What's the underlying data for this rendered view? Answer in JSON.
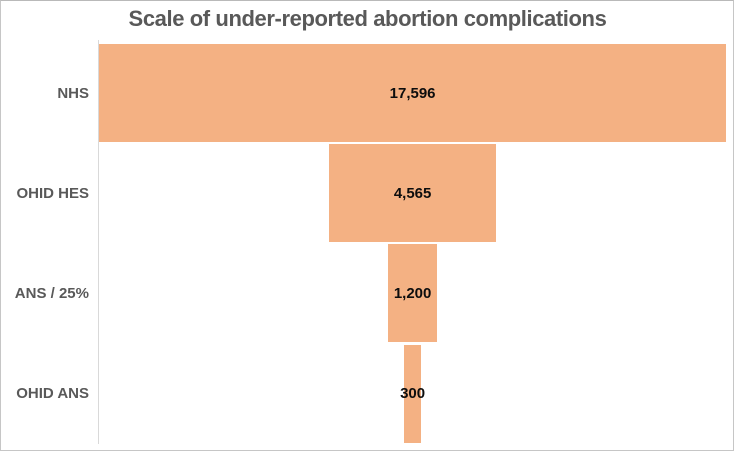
{
  "title": "Scale of under-reported abortion complications",
  "chart_data": {
    "type": "bar",
    "subtype": "centered-funnel",
    "orientation": "horizontal-centered",
    "title": "Scale of under-reported abortion complications",
    "categories": [
      "NHS",
      "OHID HES",
      "ANS / 25%",
      "OHID ANS"
    ],
    "values": [
      17596,
      4565,
      1200,
      300
    ],
    "value_labels": [
      "17,596",
      "4,565",
      "1,200",
      "300"
    ],
    "xlabel": "",
    "ylabel": "",
    "legend": false,
    "grid": false,
    "axes": {
      "y_axis_line": true,
      "x_axis_line": false,
      "ticks": false
    },
    "colors": {
      "bar_fill": "#f4b183",
      "category_label": "#595959",
      "value_label": "#0d0d0d",
      "title": "#595959",
      "axis_line": "#d9d9d9",
      "frame_border": "#c6c6c6",
      "background": "#ffffff"
    }
  }
}
